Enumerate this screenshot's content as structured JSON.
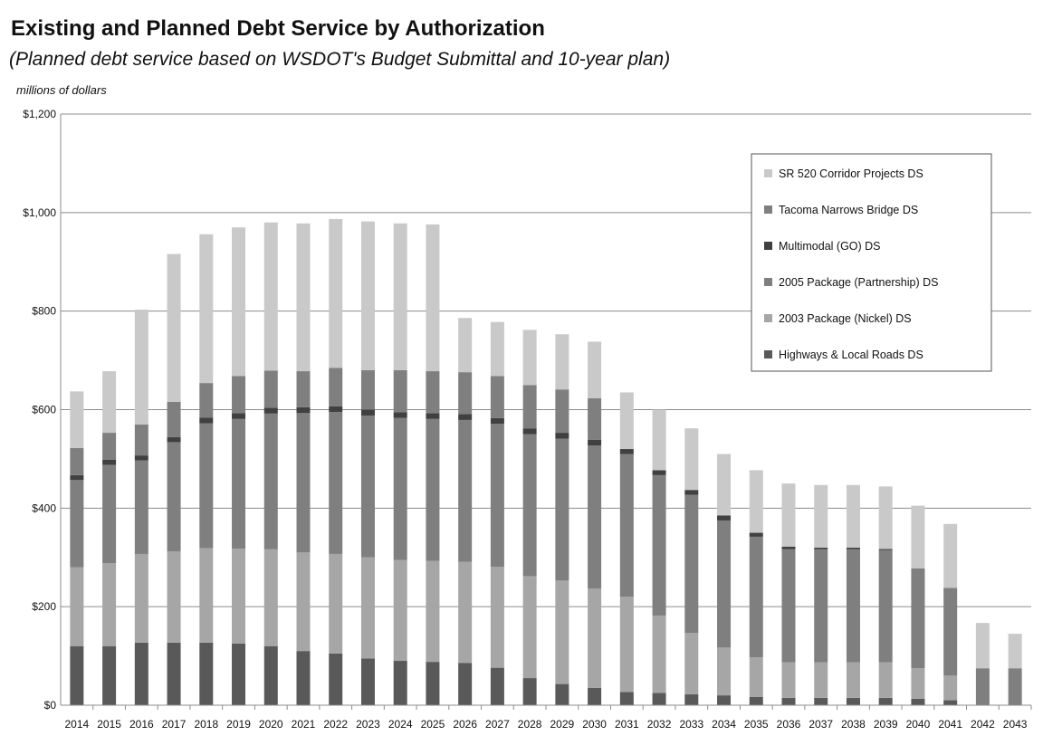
{
  "chart_data": {
    "type": "bar",
    "stacked": true,
    "title": "Existing and Planned Debt Service by Authorization",
    "subtitle": "(Planned debt service based on WSDOT's Budget Submittal and 10-year plan)",
    "ylabel": "millions of dollars",
    "ylim": [
      0,
      1200
    ],
    "yticks": [
      0,
      200,
      400,
      600,
      800,
      1000,
      1200
    ],
    "ytick_labels": [
      "$0",
      "$200",
      "$400",
      "$600",
      "$800",
      "$1,000",
      "$1,200"
    ],
    "grid": true,
    "legend_position": "top-right",
    "categories": [
      "2014",
      "2015",
      "2016",
      "2017",
      "2018",
      "2019",
      "2020",
      "2021",
      "2022",
      "2023",
      "2024",
      "2025",
      "2026",
      "2027",
      "2028",
      "2029",
      "2030",
      "2031",
      "2032",
      "2033",
      "2034",
      "2035",
      "2036",
      "2037",
      "2038",
      "2039",
      "2040",
      "2041",
      "2042",
      "2043"
    ],
    "series": [
      {
        "name": "Highways & Local Roads DS",
        "color": "#595959",
        "values": [
          120,
          120,
          127,
          127,
          127,
          125,
          120,
          110,
          105,
          95,
          90,
          88,
          86,
          76,
          55,
          43,
          35,
          27,
          25,
          22,
          20,
          17,
          15,
          15,
          15,
          15,
          13,
          10,
          0,
          0
        ]
      },
      {
        "name": "2003 Package (Nickel) DS",
        "color": "#a6a6a6",
        "values": [
          160,
          168,
          180,
          185,
          192,
          193,
          197,
          200,
          202,
          205,
          205,
          205,
          205,
          205,
          207,
          210,
          202,
          193,
          157,
          125,
          97,
          80,
          72,
          72,
          72,
          72,
          62,
          50,
          0,
          0
        ]
      },
      {
        "name": "2005 Package (Partnership) DS",
        "color": "#7f7f7f",
        "values": [
          177,
          200,
          190,
          222,
          253,
          263,
          275,
          283,
          288,
          288,
          288,
          288,
          288,
          290,
          288,
          288,
          290,
          290,
          285,
          280,
          258,
          245,
          230,
          230,
          230,
          228,
          203,
          178,
          75,
          75
        ]
      },
      {
        "name": "Multimodal (GO) DS",
        "color": "#404040",
        "values": [
          10,
          10,
          10,
          10,
          12,
          12,
          12,
          12,
          12,
          12,
          12,
          12,
          12,
          12,
          12,
          12,
          12,
          10,
          10,
          10,
          10,
          8,
          5,
          3,
          3,
          2,
          0,
          0,
          0,
          0
        ]
      },
      {
        "name": "Tacoma Narrows Bridge DS",
        "color": "#7f7f7f",
        "values": [
          55,
          55,
          63,
          72,
          70,
          75,
          75,
          73,
          78,
          80,
          85,
          85,
          85,
          85,
          88,
          88,
          84,
          0,
          0,
          0,
          0,
          0,
          0,
          0,
          0,
          0,
          0,
          0,
          0,
          0
        ]
      },
      {
        "name": "SR 520 Corridor Projects DS",
        "color": "#c9c9c9",
        "values": [
          115,
          125,
          233,
          300,
          302,
          302,
          301,
          300,
          302,
          302,
          298,
          298,
          110,
          110,
          112,
          112,
          115,
          115,
          123,
          125,
          125,
          127,
          128,
          127,
          127,
          127,
          127,
          130,
          92,
          70
        ]
      }
    ]
  }
}
